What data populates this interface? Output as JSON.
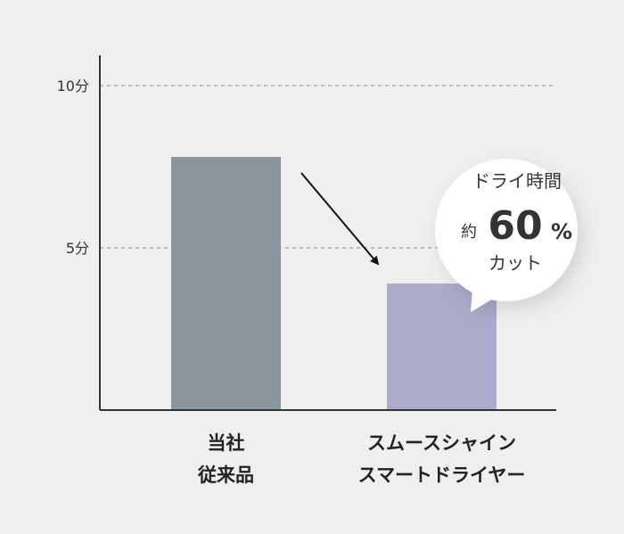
{
  "chart_data": {
    "type": "bar",
    "categories": [
      [
        "当社",
        "従来品"
      ],
      [
        "スムースシャイン",
        "スマートドライヤー"
      ]
    ],
    "values": [
      7.8,
      3.9
    ],
    "ylim": [
      0,
      10
    ],
    "yticks": [
      {
        "value": 5,
        "label": "5分"
      },
      {
        "value": 10,
        "label": "10分"
      }
    ],
    "grid": true,
    "colors": [
      "#8a959c",
      "#abaccc"
    ],
    "annotation": {
      "line1": "ドライ時間",
      "prefix": "約",
      "value": "60",
      "unit": "%",
      "line3": "カット"
    }
  }
}
